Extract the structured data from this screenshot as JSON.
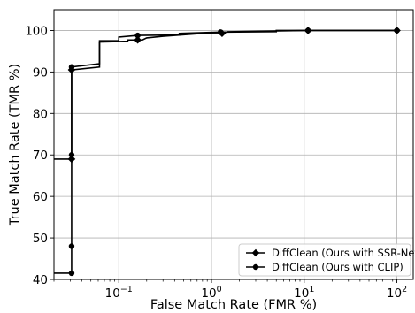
{
  "chart_data": {
    "type": "line",
    "title": "",
    "xlabel": "False Match Rate (FMR %)",
    "ylabel": "True Match Rate (TMR %)",
    "xscale": "log",
    "xlim": [
      0.02,
      150
    ],
    "ylim": [
      40,
      105
    ],
    "x_ticks": [
      {
        "value": 0.1,
        "base": "10",
        "exp": "−1"
      },
      {
        "value": 1,
        "base": "10",
        "exp": "0"
      },
      {
        "value": 10,
        "base": "10",
        "exp": "1"
      },
      {
        "value": 100,
        "base": "10",
        "exp": "2"
      }
    ],
    "y_ticks": [
      40,
      50,
      60,
      70,
      80,
      90,
      100
    ],
    "grid": true,
    "legend_position": "lower-right",
    "series": [
      {
        "name": "DiffClean (Ours with SSR-Net)",
        "marker": "diamond",
        "color": "#000000",
        "steps": [
          [
            0.02,
            69
          ],
          [
            0.031,
            69
          ],
          [
            0.031,
            90.5
          ],
          [
            0.062,
            91.2
          ],
          [
            0.062,
            97.2
          ],
          [
            0.125,
            97.4
          ],
          [
            0.125,
            97.7
          ],
          [
            0.18,
            97.7
          ],
          [
            0.2,
            98.2
          ],
          [
            0.3,
            98.6
          ],
          [
            0.7,
            99.2
          ],
          [
            1.3,
            99.3
          ],
          [
            1.5,
            99.7
          ],
          [
            11,
            100
          ],
          [
            100,
            100
          ]
        ],
        "markers": [
          [
            0.031,
            69
          ],
          [
            0.031,
            90.5
          ],
          [
            0.16,
            97.7
          ],
          [
            1.3,
            99.3
          ],
          [
            11,
            100
          ],
          [
            100,
            100
          ]
        ]
      },
      {
        "name": "DiffClean (Ours with CLIP)",
        "marker": "circle",
        "color": "#000000",
        "steps": [
          [
            0.02,
            41.5
          ],
          [
            0.031,
            41.5
          ],
          [
            0.031,
            48
          ],
          [
            0.031,
            70
          ],
          [
            0.031,
            91.2
          ],
          [
            0.062,
            92
          ],
          [
            0.062,
            97.5
          ],
          [
            0.1,
            97.5
          ],
          [
            0.1,
            98.4
          ],
          [
            0.16,
            98.8
          ],
          [
            0.45,
            98.9
          ],
          [
            0.45,
            99.3
          ],
          [
            1.25,
            99.6
          ],
          [
            5,
            99.7
          ],
          [
            5,
            100
          ],
          [
            100,
            100
          ]
        ],
        "markers": [
          [
            0.031,
            41.5
          ],
          [
            0.031,
            48
          ],
          [
            0.031,
            70
          ],
          [
            0.031,
            91.2
          ],
          [
            0.16,
            98.8
          ],
          [
            1.25,
            99.6
          ],
          [
            11,
            100
          ],
          [
            100,
            100
          ]
        ]
      }
    ]
  }
}
